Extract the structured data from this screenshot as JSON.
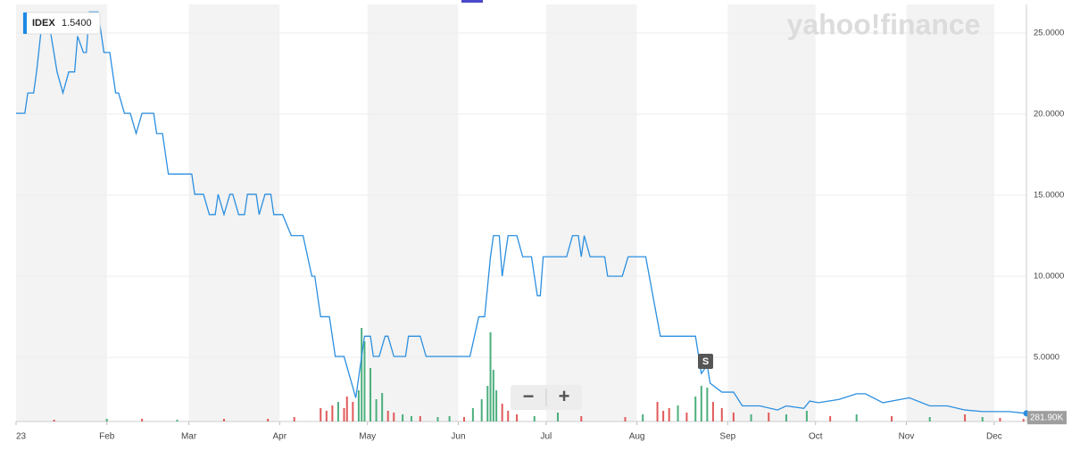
{
  "quote": {
    "symbol": "IDEX",
    "value": 1.54,
    "label": "1.5400"
  },
  "watermark": "yahoo!finance",
  "event_marker": "S",
  "zoom": {
    "out": "−",
    "in": "+"
  },
  "volume_quote": {
    "value": 281900,
    "label": "281.90K"
  },
  "chart_data": {
    "type": "line",
    "xlim": [
      0,
      345
    ],
    "xticks": [
      {
        "value": 0,
        "label": "23"
      },
      {
        "value": 31,
        "label": "Feb"
      },
      {
        "value": 59,
        "label": "Mar"
      },
      {
        "value": 90,
        "label": "Apr"
      },
      {
        "value": 120,
        "label": "May"
      },
      {
        "value": 151,
        "label": "Jun"
      },
      {
        "value": 181,
        "label": "Jul"
      },
      {
        "value": 212,
        "label": "Aug"
      },
      {
        "value": 243,
        "label": "Sep"
      },
      {
        "value": 273,
        "label": "Oct"
      },
      {
        "value": 304,
        "label": "Nov"
      },
      {
        "value": 334,
        "label": "Dec"
      }
    ],
    "ylim": [
      1.04,
      26.76
    ],
    "yticks": [
      {
        "value": 5,
        "label": "5.0000"
      },
      {
        "value": 10,
        "label": "10.0000"
      },
      {
        "value": 15,
        "label": "15.0000"
      },
      {
        "value": 20,
        "label": "20.0000"
      },
      {
        "value": 25,
        "label": "25.0000"
      }
    ],
    "y2lim": [
      0,
      46800000
    ],
    "grid": true,
    "band_color": "#f3f3f3",
    "series": [
      {
        "color": "#2b8fe0",
        "x": [
          0,
          3,
          4,
          6,
          7,
          9,
          11,
          14,
          16,
          18,
          20,
          21,
          23,
          24,
          25,
          28,
          30,
          32,
          34,
          35,
          37,
          39,
          41,
          43,
          47,
          48,
          50,
          52,
          60,
          61,
          64,
          66,
          68,
          69,
          71,
          73,
          74,
          76,
          78,
          79,
          82,
          83,
          85,
          87,
          88,
          91,
          94,
          98,
          101,
          102,
          104,
          107,
          109,
          112,
          116,
          118,
          119,
          121,
          122,
          124,
          126,
          127,
          129,
          133,
          134,
          138,
          140,
          155,
          158,
          160,
          162,
          163,
          165,
          166,
          168,
          171,
          173,
          176,
          178,
          179,
          180,
          188,
          190,
          192,
          193,
          194,
          196,
          201,
          202,
          207,
          209,
          215,
          220,
          232,
          234,
          236,
          237,
          241,
          245,
          248,
          254,
          260,
          263,
          269,
          271,
          274,
          281,
          287,
          290,
          296,
          305,
          312,
          318,
          324,
          330,
          339,
          345
        ],
        "values": [
          20.05,
          20.05,
          21.3,
          21.3,
          22.6,
          25.9,
          25.9,
          22.6,
          21.3,
          22.6,
          22.6,
          24.8,
          23.8,
          23.8,
          26.3,
          26.3,
          23.8,
          23.8,
          21.3,
          21.3,
          20.05,
          20.05,
          18.8,
          20.05,
          20.05,
          18.8,
          18.8,
          16.3,
          16.3,
          15.05,
          15.05,
          13.8,
          13.8,
          15.05,
          13.8,
          15.05,
          15.05,
          13.8,
          13.8,
          15.05,
          15.05,
          13.8,
          15.05,
          15.05,
          13.8,
          13.8,
          12.5,
          12.5,
          10,
          10,
          7.5,
          7.5,
          5.05,
          5.05,
          2.5,
          5.05,
          6.3,
          6.3,
          5.05,
          5.05,
          6.3,
          6.3,
          5.05,
          5.05,
          6.3,
          6.3,
          5.05,
          5.05,
          7.5,
          7.5,
          11.2,
          12.5,
          12.5,
          10,
          12.5,
          12.5,
          11.2,
          11.2,
          8.8,
          8.8,
          11.2,
          11.2,
          12.5,
          12.5,
          11.2,
          12.5,
          11.2,
          11.2,
          10,
          10,
          11.2,
          11.2,
          6.3,
          6.3,
          4,
          4.5,
          3.4,
          2.85,
          2.85,
          2,
          2,
          1.75,
          2,
          1.85,
          2.3,
          2.2,
          2.4,
          2.75,
          2.75,
          2.2,
          2.5,
          2,
          2,
          1.75,
          1.65,
          1.65,
          1.54
        ]
      }
    ],
    "volume": {
      "axis": "y2",
      "x": [
        13,
        31,
        43,
        55,
        71,
        86,
        95,
        104,
        106,
        108,
        110,
        112,
        113,
        115,
        117,
        118,
        119,
        121,
        123,
        125,
        127,
        129,
        132,
        135,
        138,
        144,
        148,
        153,
        156,
        159,
        161,
        162,
        163,
        164,
        166,
        168,
        171,
        177,
        185,
        193,
        208,
        214,
        219,
        221,
        223,
        226,
        229,
        232,
        234,
        236,
        238,
        241,
        245,
        251,
        257,
        263,
        270,
        278,
        287,
        299,
        312,
        324,
        330,
        336,
        344
      ],
      "values": [
        200000,
        300000,
        300000,
        200000,
        300000,
        300000,
        500000,
        1500000,
        1200000,
        1800000,
        2200000,
        1500000,
        2800000,
        2200000,
        3500000,
        10500000,
        9000000,
        6000000,
        2500000,
        3200000,
        1200000,
        1000000,
        800000,
        600000,
        600000,
        500000,
        600000,
        500000,
        1500000,
        2500000,
        4000000,
        10000000,
        5800000,
        3500000,
        2000000,
        1200000,
        800000,
        600000,
        1000000,
        600000,
        500000,
        800000,
        2200000,
        1200000,
        1500000,
        1800000,
        1000000,
        2800000,
        4000000,
        3800000,
        2200000,
        1500000,
        1000000,
        800000,
        1000000,
        800000,
        1200000,
        600000,
        800000,
        600000,
        500000,
        800000,
        500000,
        400000,
        281900
      ],
      "colors": [
        "#e05a5a",
        "#4caf7d",
        "#e05a5a",
        "#4caf7d",
        "#e05a5a",
        "#e05a5a",
        "#e05a5a",
        "#e05a5a",
        "#e05a5a",
        "#e05a5a",
        "#4caf7d",
        "#e05a5a",
        "#e05a5a",
        "#e05a5a",
        "#4caf7d",
        "#4caf7d",
        "#4caf7d",
        "#4caf7d",
        "#4caf7d",
        "#4caf7d",
        "#e05a5a",
        "#e05a5a",
        "#4caf7d",
        "#4caf7d",
        "#e05a5a",
        "#4caf7d",
        "#4caf7d",
        "#e05a5a",
        "#4caf7d",
        "#4caf7d",
        "#4caf7d",
        "#4caf7d",
        "#4caf7d",
        "#4caf7d",
        "#e05a5a",
        "#e05a5a",
        "#e05a5a",
        "#4caf7d",
        "#4caf7d",
        "#e05a5a",
        "#e05a5a",
        "#4caf7d",
        "#e05a5a",
        "#e05a5a",
        "#e05a5a",
        "#4caf7d",
        "#e05a5a",
        "#4caf7d",
        "#4caf7d",
        "#4caf7d",
        "#e05a5a",
        "#e05a5a",
        "#e05a5a",
        "#4caf7d",
        "#e05a5a",
        "#4caf7d",
        "#4caf7d",
        "#e05a5a",
        "#4caf7d",
        "#e05a5a",
        "#4caf7d",
        "#e05a5a",
        "#4caf7d",
        "#e05a5a",
        "#e05a5a"
      ]
    }
  }
}
